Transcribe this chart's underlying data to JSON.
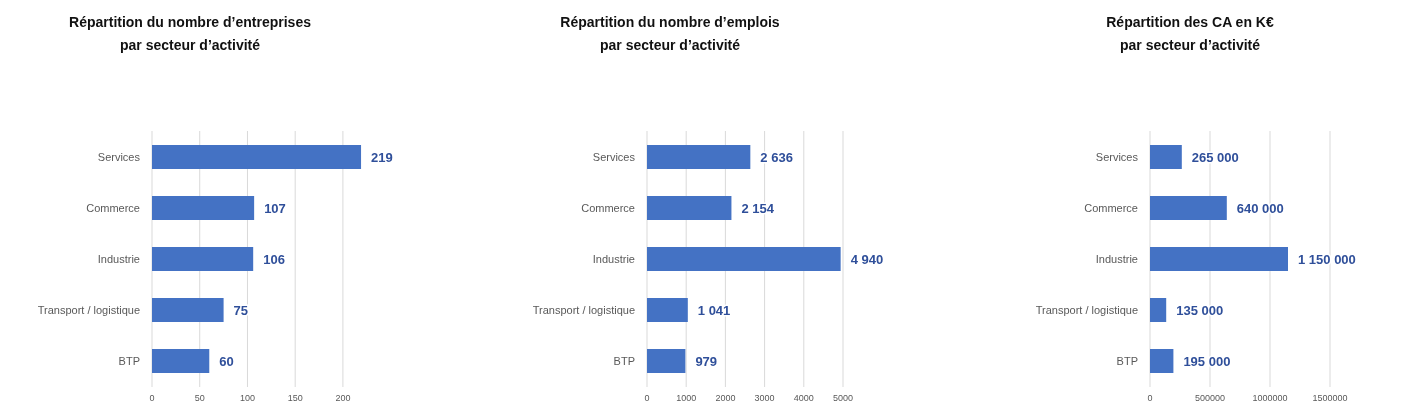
{
  "chart_data": [
    {
      "type": "bar",
      "orientation": "horizontal",
      "title": "Répartition du nombre d’entreprises\npar secteur d’activité",
      "categories": [
        "Services",
        "Commerce",
        "Industrie",
        "Transport / logistique",
        "BTP"
      ],
      "values": [
        219,
        107,
        106,
        75,
        60
      ],
      "color": "#4472c4",
      "data_labels": true,
      "xlim": [
        0,
        220
      ],
      "xticks": [
        0,
        50,
        100,
        150,
        200
      ],
      "grid": "x"
    },
    {
      "type": "bar",
      "orientation": "horizontal",
      "title": "Répartition du nombre d’emplois\npar secteur d’activité",
      "categories": [
        "Services",
        "Commerce",
        "Industrie",
        "Transport / logistique",
        "BTP"
      ],
      "values": [
        2636,
        2154,
        4940,
        1041,
        979
      ],
      "value_labels": [
        "2 636",
        "2 154",
        "4 940",
        "1 041",
        "979"
      ],
      "color": "#4472c4",
      "xlim": [
        0,
        5000
      ],
      "xticks": [
        0,
        1000,
        2000,
        3000,
        4000,
        5000
      ],
      "grid": "x"
    },
    {
      "type": "bar",
      "orientation": "horizontal",
      "title": "Répartition des CA en K€\npar secteur d’activité",
      "categories": [
        "Services",
        "Commerce",
        "Industrie",
        "Transport / logistique",
        "BTP"
      ],
      "values": [
        265000,
        640000,
        1150000,
        135000,
        195000
      ],
      "value_labels": [
        "265 000",
        "640 000",
        "1 150 000",
        "135 000",
        "195 000"
      ],
      "color": "#4472c4",
      "xlim": [
        0,
        1500000
      ],
      "xticks": [
        0,
        500000,
        1000000,
        1500000
      ],
      "grid": "x"
    }
  ]
}
